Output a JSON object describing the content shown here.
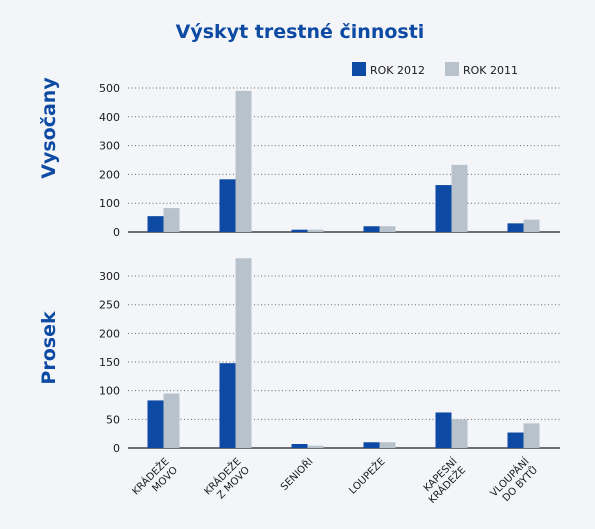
{
  "chart_data": {
    "type": "bar",
    "title": "Výskyt trestné činnosti",
    "legend": {
      "placement": "top-right"
    },
    "colors": {
      "ROK 2012": "#0d4aa3",
      "ROK 2011": "#b7c2cd",
      "title": "#0d4aa3"
    },
    "categories": [
      "KRÁDEŽE\nMOVO",
      "KRÁDEŽE\nZ MOVO",
      "SENIOŘI",
      "LOUPEŽE",
      "KAPESNÍ\nKRÁDEŽE",
      "VLOUPÁNÍ\nDO BYTŮ"
    ],
    "grid": true,
    "panels": [
      {
        "label": "Vysočany",
        "ylim": [
          0,
          500
        ],
        "yticks": [
          0,
          100,
          200,
          300,
          400,
          500
        ],
        "series": [
          {
            "name": "ROK 2012",
            "values": [
              55,
              183,
              8,
              20,
              163,
              30
            ]
          },
          {
            "name": "ROK 2011",
            "values": [
              83,
              490,
              8,
              20,
              233,
              43
            ]
          }
        ]
      },
      {
        "label": "Prosek",
        "ylim": [
          0,
          335
        ],
        "yticks": [
          0,
          50,
          100,
          150,
          200,
          250,
          300
        ],
        "series": [
          {
            "name": "ROK 2012",
            "values": [
              83,
              148,
              7,
              10,
              62,
              27
            ]
          },
          {
            "name": "ROK 2011",
            "values": [
              95,
              331,
              4,
              10,
              50,
              43
            ]
          }
        ]
      }
    ]
  }
}
